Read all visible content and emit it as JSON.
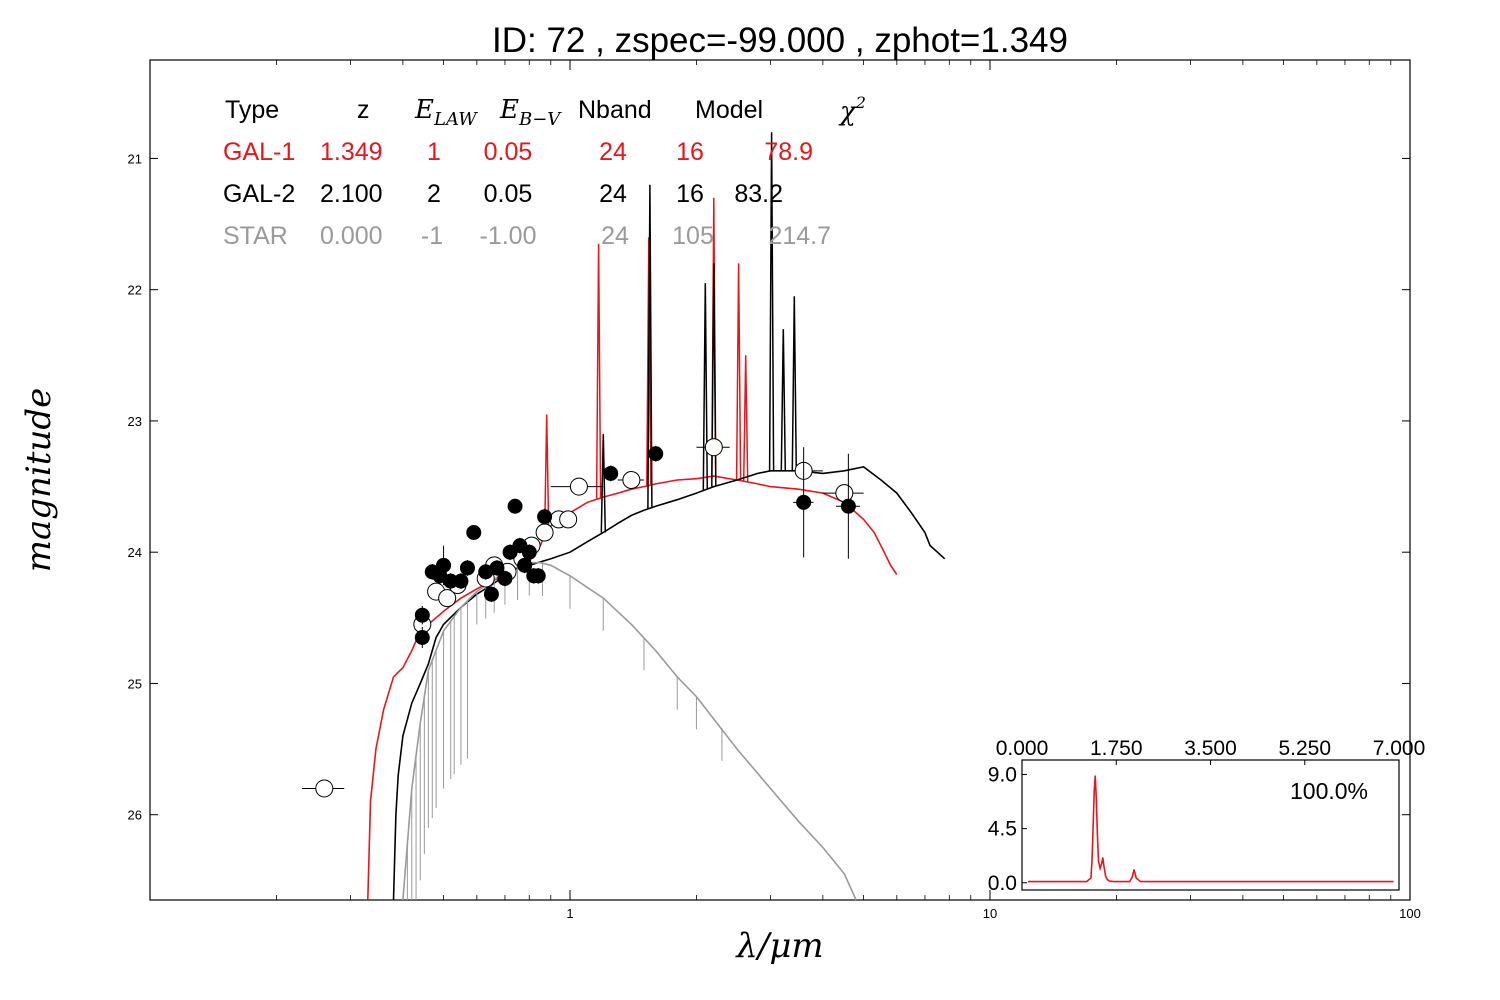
{
  "title": "ID:  72    , zspec=-99.000 , zphot=1.349",
  "colors": {
    "gal1": "#e8161b",
    "gal2": "#000000",
    "star": "#9a9a9a",
    "axis": "#000000"
  },
  "table": {
    "headers": [
      "Type",
      "z",
      "E_LAW",
      "E_B-V",
      "Nband",
      "Model",
      "χ²"
    ],
    "header_display": {
      "type": "Type",
      "z": "z",
      "elaw_main": "E",
      "elaw_sub": "LAW",
      "ebv_main": "E",
      "ebv_sub": "B−V",
      "nband": "Nband",
      "model": "Model",
      "chi_main": "χ",
      "chi_sup": "2"
    },
    "rows": [
      {
        "type": "GAL-1",
        "z": "1.349",
        "elaw": "1",
        "ebv": "0.05",
        "nband": "24",
        "model": "16",
        "chi2": "78.9"
      },
      {
        "type": "GAL-2",
        "z": "2.100",
        "elaw": "2",
        "ebv": "0.05",
        "nband": "24",
        "model": "16",
        "chi2": "83.2"
      },
      {
        "type": "STAR",
        "z": "0.000",
        "elaw": "-1",
        "ebv": "-1.00",
        "nband": "24",
        "model": "105",
        "chi2": "214.7"
      }
    ]
  },
  "chart_data": [
    {
      "type": "line",
      "xlabel": "λ/μm",
      "ylabel": "magnitude",
      "xscale": "log",
      "xlim": [
        0.1,
        100
      ],
      "ylim": [
        26.65,
        20.25
      ],
      "y_inverted": true,
      "xticks": [
        1,
        10,
        100
      ],
      "xtick_labels": [
        "1",
        "10",
        "100"
      ],
      "yticks": [
        21,
        22,
        23,
        24,
        25,
        26
      ],
      "ytick_labels": [
        "21",
        "22",
        "23",
        "24",
        "25",
        "26"
      ],
      "series": [
        {
          "name": "GAL-1",
          "color": "#e8161b",
          "points": [
            [
              0.33,
              26.65
            ],
            [
              0.335,
              25.9
            ],
            [
              0.345,
              25.5
            ],
            [
              0.36,
              25.2
            ],
            [
              0.38,
              24.95
            ],
            [
              0.4,
              24.88
            ],
            [
              0.42,
              24.75
            ],
            [
              0.44,
              24.6
            ],
            [
              0.46,
              24.55
            ],
            [
              0.5,
              24.45
            ],
            [
              0.55,
              24.35
            ],
            [
              0.6,
              24.28
            ],
            [
              0.65,
              24.22
            ],
            [
              0.7,
              24.18
            ],
            [
              0.75,
              24.12
            ],
            [
              0.8,
              24.05
            ],
            [
              0.85,
              23.95
            ],
            [
              0.875,
              23.85
            ],
            [
              0.9,
              23.8
            ],
            [
              0.95,
              23.75
            ],
            [
              1.0,
              23.7
            ],
            [
              1.1,
              23.62
            ],
            [
              1.2,
              23.58
            ],
            [
              1.3,
              23.55
            ],
            [
              1.4,
              23.52
            ],
            [
              1.5,
              23.5
            ],
            [
              1.6,
              23.48
            ],
            [
              1.8,
              23.45
            ],
            [
              2.0,
              23.44
            ],
            [
              2.2,
              23.42
            ],
            [
              2.5,
              23.45
            ],
            [
              2.8,
              23.48
            ],
            [
              3.0,
              23.5
            ],
            [
              3.5,
              23.52
            ],
            [
              4.0,
              23.55
            ],
            [
              4.5,
              23.62
            ],
            [
              5.0,
              23.75
            ],
            [
              5.3,
              23.85
            ],
            [
              5.6,
              24.0
            ],
            [
              5.8,
              24.1
            ],
            [
              6.0,
              24.17
            ]
          ],
          "emission_lines": [
            [
              0.88,
              22.95
            ],
            [
              1.17,
              21.65
            ],
            [
              1.54,
              21.6
            ],
            [
              2.2,
              21.3
            ],
            [
              2.52,
              21.8
            ],
            [
              2.62,
              22.5
            ]
          ]
        },
        {
          "name": "GAL-2",
          "color": "#000000",
          "points": [
            [
              0.38,
              26.65
            ],
            [
              0.385,
              26.0
            ],
            [
              0.39,
              25.7
            ],
            [
              0.4,
              25.4
            ],
            [
              0.42,
              25.15
            ],
            [
              0.44,
              25.0
            ],
            [
              0.46,
              24.85
            ],
            [
              0.48,
              24.65
            ],
            [
              0.5,
              24.55
            ],
            [
              0.55,
              24.42
            ],
            [
              0.6,
              24.32
            ],
            [
              0.65,
              24.25
            ],
            [
              0.7,
              24.18
            ],
            [
              0.75,
              24.12
            ],
            [
              0.8,
              24.1
            ],
            [
              0.9,
              24.05
            ],
            [
              1.0,
              24.0
            ],
            [
              1.1,
              23.92
            ],
            [
              1.2,
              23.85
            ],
            [
              1.3,
              23.78
            ],
            [
              1.4,
              23.72
            ],
            [
              1.5,
              23.68
            ],
            [
              1.6,
              23.65
            ],
            [
              1.8,
              23.6
            ],
            [
              2.0,
              23.55
            ],
            [
              2.2,
              23.5
            ],
            [
              2.5,
              23.45
            ],
            [
              2.8,
              23.4
            ],
            [
              3.0,
              23.38
            ],
            [
              3.5,
              23.38
            ],
            [
              4.0,
              23.4
            ],
            [
              4.5,
              23.38
            ],
            [
              5.0,
              23.35
            ],
            [
              5.5,
              23.45
            ],
            [
              6.0,
              23.55
            ],
            [
              6.5,
              23.7
            ],
            [
              7.0,
              23.85
            ],
            [
              7.2,
              23.95
            ],
            [
              7.5,
              24.0
            ],
            [
              7.8,
              24.05
            ]
          ],
          "emission_lines": [
            [
              1.2,
              23.1
            ],
            [
              1.55,
              21.2
            ],
            [
              2.1,
              21.95
            ],
            [
              2.2,
              21.8
            ],
            [
              3.02,
              20.8
            ],
            [
              3.22,
              22.3
            ],
            [
              3.42,
              22.05
            ]
          ]
        },
        {
          "name": "STAR",
          "color": "#9a9a9a",
          "points": [
            [
              0.4,
              26.65
            ],
            [
              0.42,
              25.8
            ],
            [
              0.44,
              25.3
            ],
            [
              0.46,
              24.9
            ],
            [
              0.5,
              24.6
            ],
            [
              0.55,
              24.42
            ],
            [
              0.6,
              24.3
            ],
            [
              0.7,
              24.15
            ],
            [
              0.8,
              24.08
            ],
            [
              0.85,
              24.08
            ],
            [
              0.9,
              24.1
            ],
            [
              1.0,
              24.18
            ],
            [
              1.2,
              24.35
            ],
            [
              1.4,
              24.55
            ],
            [
              1.6,
              24.75
            ],
            [
              1.8,
              24.95
            ],
            [
              2.0,
              25.1
            ],
            [
              2.5,
              25.5
            ],
            [
              3.0,
              25.8
            ],
            [
              3.5,
              26.05
            ],
            [
              4.0,
              26.25
            ],
            [
              4.5,
              26.45
            ],
            [
              4.8,
              26.65
            ]
          ]
        }
      ],
      "photometry_open": [
        {
          "x": 0.26,
          "y": 25.8,
          "xerr": [
            0.23,
            0.29
          ]
        },
        {
          "x": 0.445,
          "y": 24.55,
          "xerr": [
            0.43,
            0.46
          ]
        },
        {
          "x": 0.48,
          "y": 24.3,
          "xerr": [
            0.47,
            0.49
          ]
        },
        {
          "x": 0.51,
          "y": 24.35,
          "xerr": [
            0.5,
            0.52
          ]
        },
        {
          "x": 0.54,
          "y": 24.25,
          "xerr": [
            0.53,
            0.55
          ]
        },
        {
          "x": 0.63,
          "y": 24.2,
          "xerr": [
            0.61,
            0.65
          ]
        },
        {
          "x": 0.66,
          "y": 24.1,
          "xerr": [
            0.64,
            0.68
          ]
        },
        {
          "x": 0.71,
          "y": 24.15,
          "xerr": [
            0.69,
            0.73
          ]
        },
        {
          "x": 0.77,
          "y": 24.05,
          "xerr": [
            0.75,
            0.79
          ]
        },
        {
          "x": 0.81,
          "y": 23.95,
          "xerr": [
            0.79,
            0.83
          ]
        },
        {
          "x": 0.87,
          "y": 23.85,
          "xerr": [
            0.84,
            0.9
          ]
        },
        {
          "x": 0.94,
          "y": 23.75,
          "xerr": [
            0.91,
            0.97
          ]
        },
        {
          "x": 0.99,
          "y": 23.75,
          "xerr": [
            0.96,
            1.02
          ]
        },
        {
          "x": 1.05,
          "y": 23.5,
          "xerr": [
            0.9,
            1.2
          ]
        },
        {
          "x": 1.4,
          "y": 23.45,
          "xerr": [
            1.3,
            1.5
          ]
        },
        {
          "x": 2.2,
          "y": 23.2,
          "xerr": [
            2.0,
            2.4
          ]
        },
        {
          "x": 3.6,
          "y": 23.38,
          "xerr": [
            3.2,
            4.0
          ]
        },
        {
          "x": 4.5,
          "y": 23.55,
          "xerr": [
            4.0,
            5.0
          ]
        }
      ],
      "photometry_filled": [
        {
          "x": 0.445,
          "y": 24.48,
          "yerr": 0.07
        },
        {
          "x": 0.445,
          "y": 24.65,
          "yerr": 0.08
        },
        {
          "x": 0.47,
          "y": 24.15,
          "yerr": 0.06
        },
        {
          "x": 0.49,
          "y": 24.18,
          "yerr": 0.06
        },
        {
          "x": 0.5,
          "y": 24.1,
          "yerr": 0.15
        },
        {
          "x": 0.52,
          "y": 24.22,
          "yerr": 0.06
        },
        {
          "x": 0.55,
          "y": 24.22,
          "yerr": 0.06
        },
        {
          "x": 0.57,
          "y": 24.12,
          "yerr": 0.06
        },
        {
          "x": 0.59,
          "y": 23.85,
          "yerr": 0.04
        },
        {
          "x": 0.63,
          "y": 24.15,
          "yerr": 0.06
        },
        {
          "x": 0.65,
          "y": 24.32,
          "yerr": 0.06
        },
        {
          "x": 0.67,
          "y": 24.12,
          "yerr": 0.06
        },
        {
          "x": 0.7,
          "y": 24.2,
          "yerr": 0.06
        },
        {
          "x": 0.72,
          "y": 24.0,
          "yerr": 0.06
        },
        {
          "x": 0.74,
          "y": 23.65,
          "yerr": 0.05
        },
        {
          "x": 0.76,
          "y": 23.95,
          "yerr": 0.06
        },
        {
          "x": 0.78,
          "y": 24.1,
          "yerr": 0.06
        },
        {
          "x": 0.8,
          "y": 24.0,
          "yerr": 0.06
        },
        {
          "x": 0.82,
          "y": 24.18,
          "yerr": 0.06
        },
        {
          "x": 0.84,
          "y": 24.18,
          "yerr": 0.06
        },
        {
          "x": 0.87,
          "y": 23.73,
          "yerr": 0.06
        },
        {
          "x": 1.25,
          "y": 23.4,
          "yerr": 0.06
        },
        {
          "x": 1.6,
          "y": 23.25,
          "yerr": 0.06
        },
        {
          "x": 3.6,
          "y": 23.62,
          "yerr": 0.42,
          "xerr": [
            3.4,
            3.8
          ]
        },
        {
          "x": 4.6,
          "y": 23.65,
          "yerr": 0.4,
          "xerr": [
            4.3,
            4.9
          ]
        }
      ]
    },
    {
      "type": "line",
      "inset": true,
      "xlim": [
        0,
        7
      ],
      "ylim": [
        -0.6,
        10.2
      ],
      "xticks": [
        0,
        1.75,
        3.5,
        5.25,
        7
      ],
      "xtick_labels": [
        "0.000",
        "1.750",
        "3.500",
        "5.250",
        "7.000"
      ],
      "yticks": [
        0,
        4.5,
        9
      ],
      "ytick_labels": [
        "0.0",
        "4.5",
        "9.0"
      ],
      "annotation": "100.0%",
      "series": [
        {
          "color": "#e8161b",
          "x": [
            0.11,
            1.2,
            1.28,
            1.3,
            1.32,
            1.34,
            1.36,
            1.38,
            1.4,
            1.42,
            1.45,
            1.48,
            1.5,
            1.52,
            1.55,
            1.58,
            1.62,
            1.7,
            1.8,
            2.0,
            2.05,
            2.08,
            2.12,
            2.2,
            2.4,
            6.9
          ],
          "y": [
            0.1,
            0.1,
            0.4,
            1.8,
            4.6,
            7.6,
            8.9,
            7.0,
            4.0,
            1.8,
            1.2,
            1.6,
            2.1,
            1.4,
            0.6,
            0.3,
            0.15,
            0.1,
            0.1,
            0.1,
            0.5,
            1.1,
            0.4,
            0.1,
            0.1,
            0.1
          ]
        }
      ]
    }
  ]
}
